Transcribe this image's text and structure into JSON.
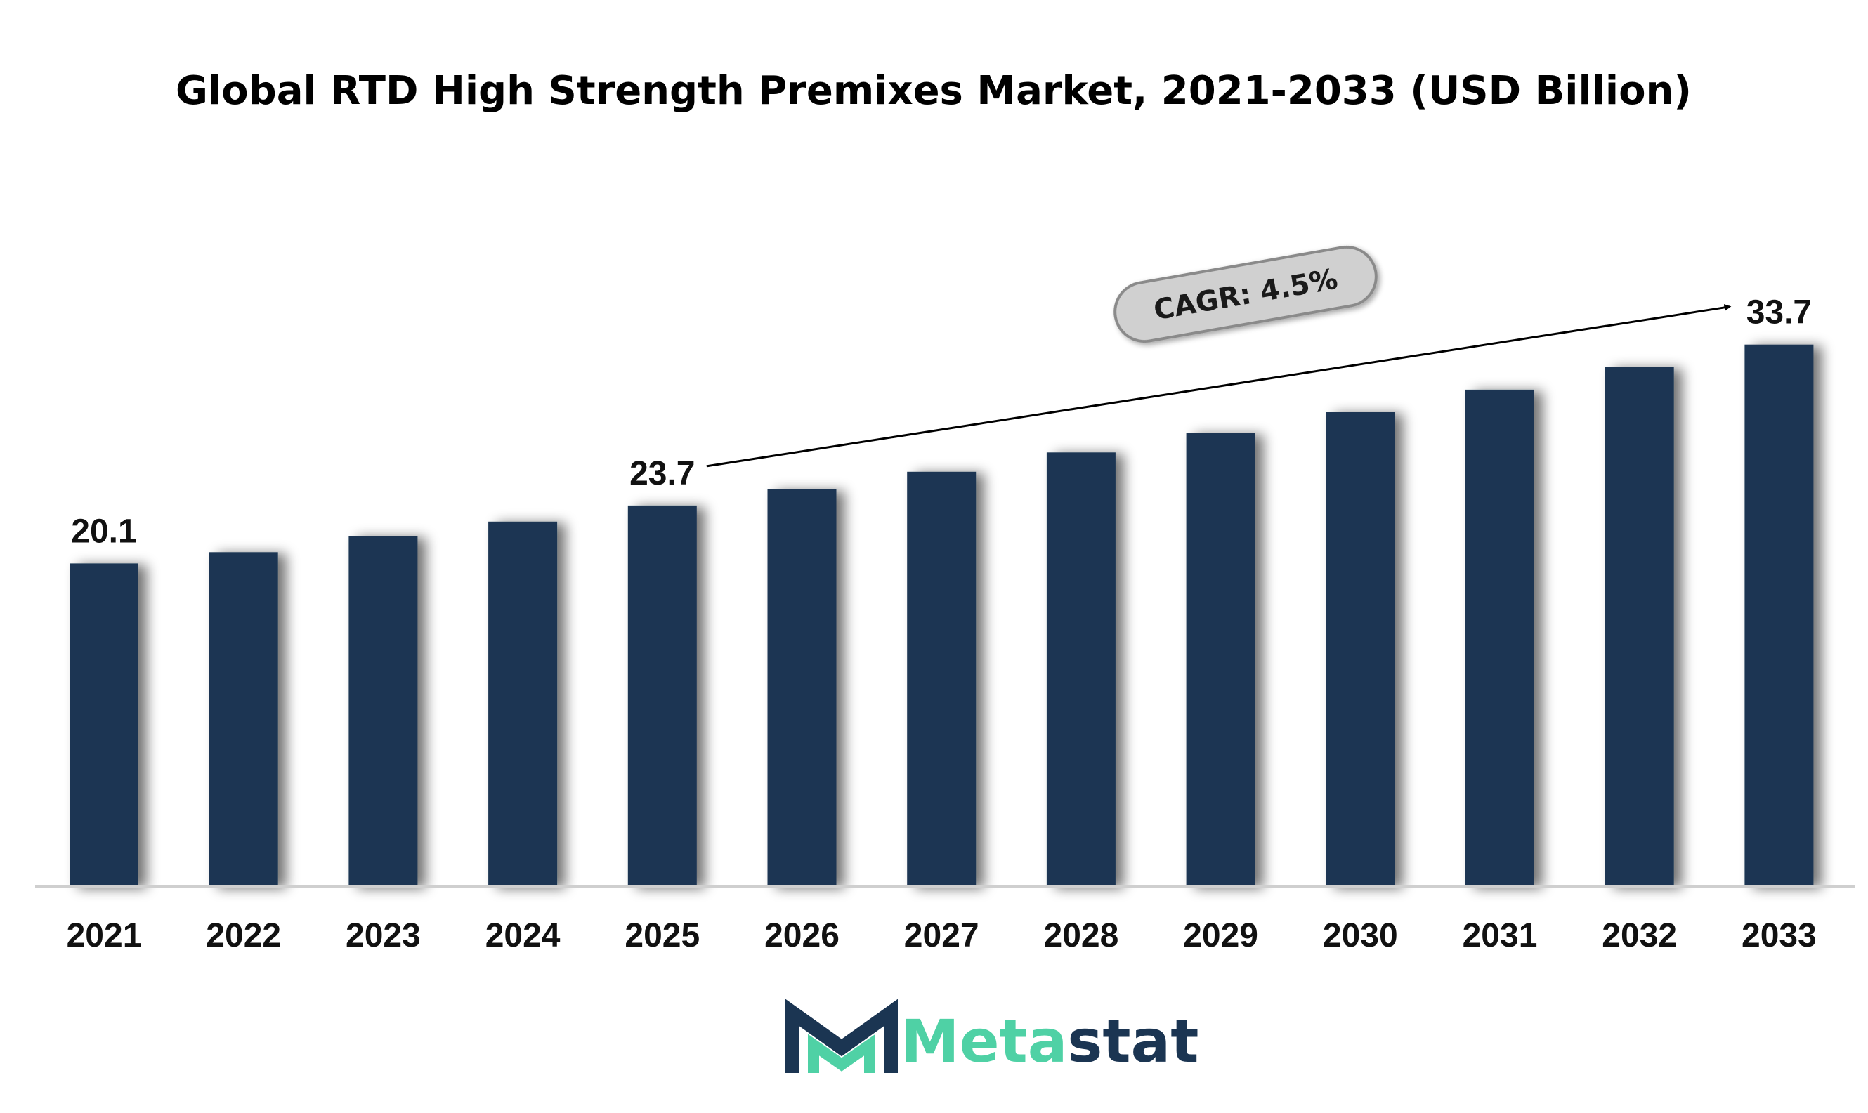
{
  "chart_data": {
    "type": "bar",
    "title": "Global RTD High Strength Premixes Market, 2021-2033 (USD Billion)",
    "categories": [
      "2021",
      "2022",
      "2023",
      "2024",
      "2025",
      "2026",
      "2027",
      "2028",
      "2029",
      "2030",
      "2031",
      "2032",
      "2033"
    ],
    "values": [
      20.1,
      20.8,
      21.8,
      22.7,
      23.7,
      24.7,
      25.8,
      27.0,
      28.2,
      29.5,
      30.9,
      32.3,
      33.7
    ],
    "ylim": [
      0,
      36
    ],
    "grid": false,
    "data_labels": [
      {
        "index": 0,
        "text": "20.1"
      },
      {
        "index": 4,
        "text": "23.7"
      },
      {
        "index": 12,
        "text": "33.7"
      }
    ],
    "annotation": {
      "text": "CAGR: 4.5%",
      "from_index": 4,
      "to_index": 12
    },
    "colors": {
      "bar": "#1b3552",
      "axis": "#cccccc",
      "callout_fill": "#d0d0d0",
      "callout_stroke": "#8a8a8a"
    }
  },
  "logo": {
    "text_part1": "Meta",
    "text_part2": "stat",
    "color_part1": "#4fd1a5",
    "color_part2": "#1b3552"
  }
}
